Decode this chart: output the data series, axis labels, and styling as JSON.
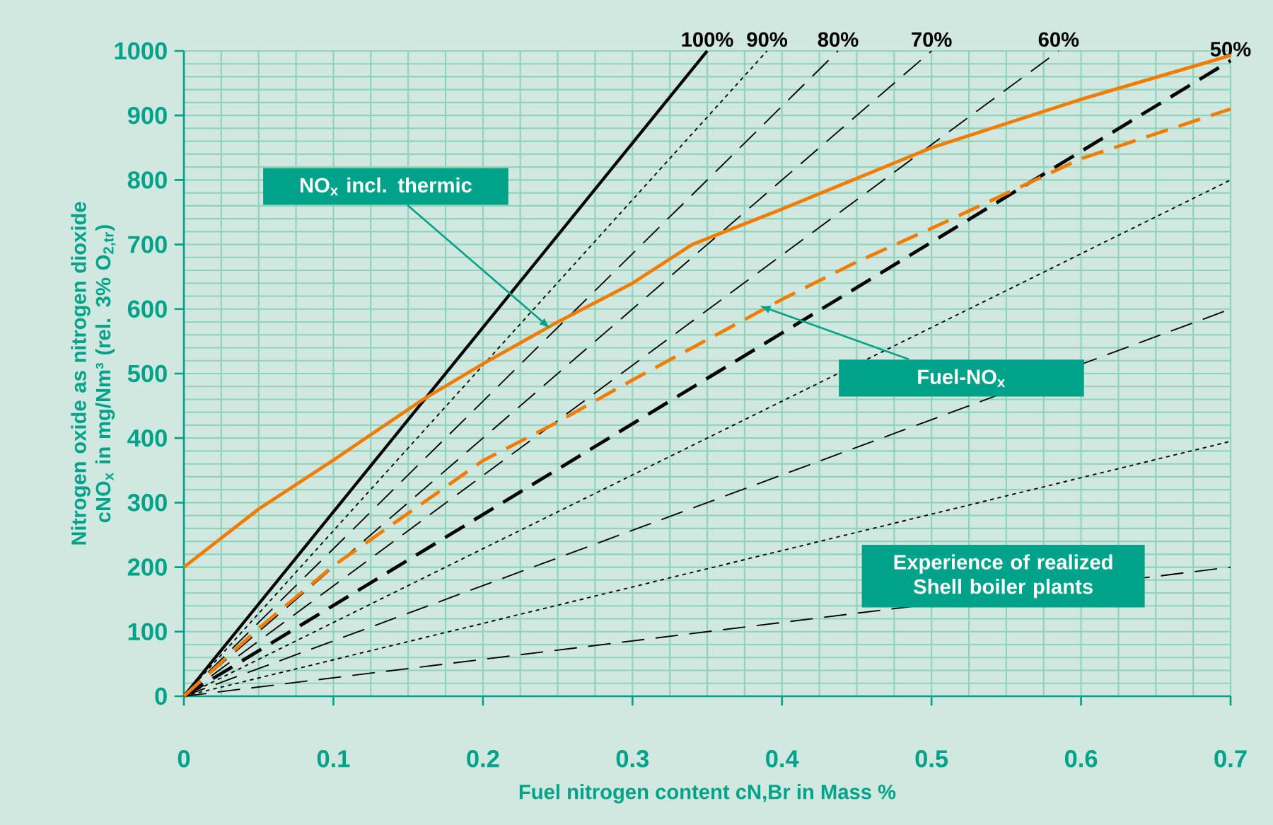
{
  "chart_data": {
    "type": "line",
    "xlabel": "Fuel nitrogen content cN,Br in Mass %",
    "ylabel": "Nitrogen oxide as nitrogen dioxide cNO$_{x}$ in mg/Nm³ (rel. 3% O$_{2,tr}$)",
    "xlim": [
      0,
      0.7
    ],
    "ylim": [
      0,
      1000
    ],
    "xticks": [
      0,
      0.1,
      0.2,
      0.3,
      0.4,
      0.5,
      0.6,
      0.7
    ],
    "yticks": [
      0,
      100,
      200,
      300,
      400,
      500,
      600,
      700,
      800,
      900,
      1000
    ],
    "grid": true,
    "marker": "none",
    "series": [
      {
        "name": "100%",
        "color": "#000000",
        "line_style": "solid",
        "x": [
          0,
          0.35
        ],
        "values": [
          0,
          1000
        ]
      },
      {
        "name": "90%",
        "color": "#000000",
        "line_style": "dotted",
        "x": [
          0,
          0.39
        ],
        "values": [
          0,
          1000
        ]
      },
      {
        "name": "80%",
        "color": "#000000",
        "line_style": "dashed",
        "x": [
          0,
          0.4375
        ],
        "values": [
          0,
          1000
        ]
      },
      {
        "name": "70%",
        "color": "#000000",
        "line_style": "dashed",
        "x": [
          0,
          0.5
        ],
        "values": [
          0,
          1000
        ]
      },
      {
        "name": "60%",
        "color": "#000000",
        "line_style": "dashed",
        "x": [
          0,
          0.585
        ],
        "values": [
          0,
          1000
        ]
      },
      {
        "name": "50%",
        "color": "#000000",
        "line_style": "dashed",
        "x": [
          0,
          0.7
        ],
        "values": [
          0,
          985
        ]
      },
      {
        "color": "#000000",
        "line_style": "dotted",
        "x": [
          0,
          0.7
        ],
        "values": [
          0,
          800
        ]
      },
      {
        "color": "#000000",
        "line_style": "dashed",
        "x": [
          0,
          0.7
        ],
        "values": [
          0,
          600
        ]
      },
      {
        "color": "#000000",
        "line_style": "dotted",
        "x": [
          0,
          0.7
        ],
        "values": [
          0,
          395
        ]
      },
      {
        "color": "#000000",
        "line_style": "dashed",
        "x": [
          0,
          0.7
        ],
        "values": [
          0,
          200
        ]
      },
      {
        "color": "#f07d00",
        "line_style": "solid",
        "x": [
          0,
          0.05,
          0.1,
          0.16,
          0.2,
          0.25,
          0.3,
          0.34,
          0.4,
          0.5,
          0.6,
          0.7
        ],
        "values": [
          200,
          290,
          366,
          460,
          515,
          580,
          640,
          700,
          755,
          850,
          925,
          993
        ]
      },
      {
        "color": "#f07d00",
        "line_style": "dashed",
        "x": [
          0,
          0.05,
          0.1,
          0.2,
          0.25,
          0.3,
          0.4,
          0.45,
          0.5,
          0.6,
          0.7
        ],
        "values": [
          0,
          105,
          202,
          365,
          425,
          490,
          615,
          673,
          725,
          833,
          910
        ]
      }
    ],
    "annotations": [
      {
        "text": "NO$_{x}$ incl. thermic",
        "x": 0.245,
        "y": 570
      },
      {
        "text": "Fuel-NO$_{x}$",
        "x": 0.385,
        "y": 605
      },
      "Experience of realized Shell boiler plants"
    ]
  }
}
